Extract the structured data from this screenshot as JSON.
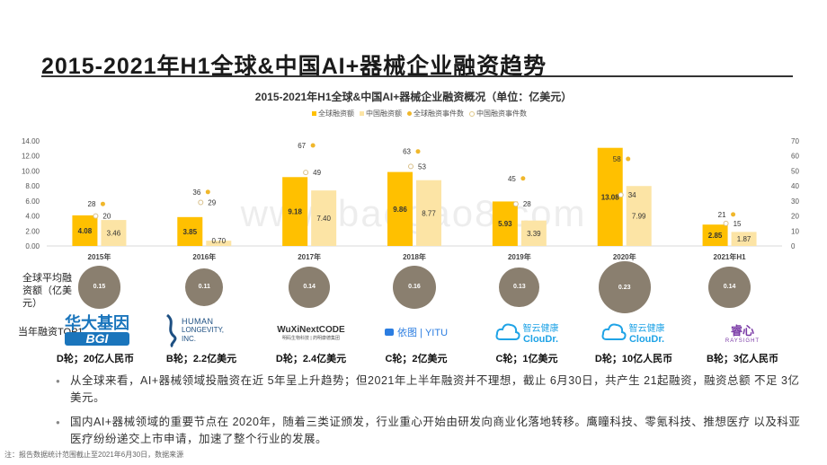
{
  "page": {
    "title": "2015-2021年H1全球&中国AI+器械企业融资趋势",
    "avg_label": "全球平均融资额（亿美元）",
    "top_label": "当年融资TOP1",
    "note": "注：报告数据统计范围截止至2021年6月30日，数据来源",
    "watermark": "www.baogao8.com"
  },
  "colors": {
    "global_amount": "#FFC000",
    "china_amount": "#FCE4A5",
    "global_events": "#F0B72B",
    "china_events": "#FFFFFF",
    "bubble": "#8A7F6F"
  },
  "chart_data": {
    "type": "bar",
    "title": "2015-2021年H1全球&中国AI+器械企业融资概况（单位：亿美元）",
    "categories": [
      "2015年",
      "2016年",
      "2017年",
      "2018年",
      "2019年",
      "2020年",
      "2021年H1"
    ],
    "series": [
      {
        "name": "全球融资额",
        "type": "bar",
        "axis": "left",
        "values": [
          4.08,
          3.85,
          9.18,
          9.86,
          5.93,
          13.08,
          2.85
        ]
      },
      {
        "name": "中国融资额",
        "type": "bar",
        "axis": "left",
        "values": [
          3.46,
          0.7,
          7.4,
          8.77,
          3.39,
          7.99,
          1.87
        ]
      },
      {
        "name": "全球融资事件数",
        "type": "scatter",
        "axis": "right",
        "values": [
          28,
          36,
          67,
          63,
          45,
          58,
          21
        ]
      },
      {
        "name": "中国融资事件数",
        "type": "scatter",
        "axis": "right",
        "values": [
          20,
          29,
          49,
          53,
          28,
          34,
          15
        ]
      }
    ],
    "ylim": [
      0,
      14
    ],
    "yticks": [
      "0.00",
      "2.00",
      "4.00",
      "6.00",
      "8.00",
      "10.00",
      "12.00",
      "14.00"
    ],
    "y2lim": [
      0,
      70
    ],
    "y2ticks": [
      "0",
      "10",
      "20",
      "30",
      "40",
      "50",
      "60",
      "70"
    ],
    "legend_position": "top-center",
    "grid": false
  },
  "avg_amounts": {
    "values": [
      0.15,
      0.11,
      0.14,
      0.16,
      0.13,
      0.23,
      0.14
    ],
    "labels": [
      "0.15",
      "0.11",
      "0.14",
      "0.16",
      "0.13",
      "0.23",
      "0.14"
    ]
  },
  "top1": [
    {
      "company": "BGI",
      "logo_text_top": "华大基因",
      "logo_text_bottom": "BGI",
      "round": "D轮；20亿人民币"
    },
    {
      "company": "Human Longevity",
      "logo_text_top": "HUMAN",
      "logo_text_bottom": "LONGEVITY, INC.",
      "round": "B轮；2.2亿美元"
    },
    {
      "company": "WuXiNextCODE",
      "logo_text_top": "WuXiNextCODE",
      "logo_text_bottom": "明码生物科技 | 药明康德集团",
      "round": "D轮；2.4亿美元"
    },
    {
      "company": "YITU",
      "logo_text_top": "依图 | YITU",
      "logo_text_bottom": "",
      "round": "C轮；2亿美元"
    },
    {
      "company": "CloudDr.",
      "logo_text_top": "智云健康",
      "logo_text_bottom": "ClouDr.",
      "round": "C轮；1亿美元"
    },
    {
      "company": "CloudDr.",
      "logo_text_top": "智云健康",
      "logo_text_bottom": "ClouDr.",
      "round": "D轮；10亿人民币"
    },
    {
      "company": "Raysight",
      "logo_text_top": "睿心",
      "logo_text_bottom": "RAYSIGHT",
      "round": "B轮；3亿人民币"
    }
  ],
  "bullets": [
    "从全球来看，AI+器械领域投融资在近 5年呈上升趋势；但2021年上半年融资并不理想，截止 6月30日，共产生 21起融资，融资总额 不足 3亿美元。",
    "国内AI+器械领域的重要节点在 2020年，随着三类证颁发，行业重心开始由研发向商业化落地转移。鹰瞳科技、零氪科技、推想医疗 以及科亚医疗纷纷递交上市申请，加速了整个行业的发展。"
  ]
}
